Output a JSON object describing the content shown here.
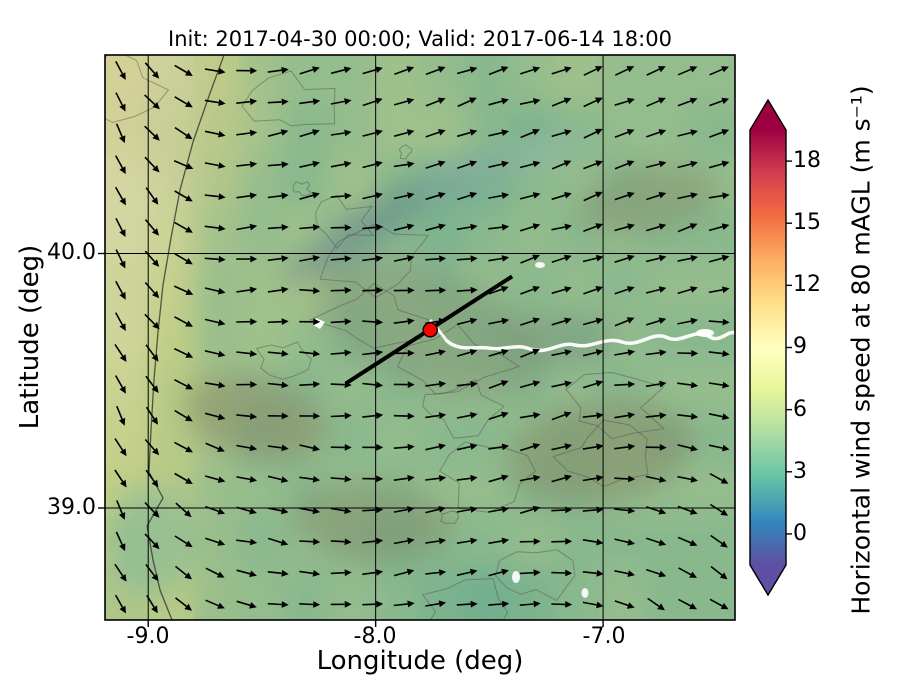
{
  "figure": {
    "title": "Init: 2017-04-30 00:00; Valid: 2017-06-14 18:00"
  },
  "chart_data": {
    "type": "heatmap",
    "title": "Init: 2017-04-30 00:00; Valid: 2017-06-14 18:00",
    "xlabel": "Longitude (deg)",
    "ylabel": "Latitude (deg)",
    "colorbar_label": "Horizontal wind speed at 80 mAGL (m s⁻¹)",
    "xlim": [
      -9.19,
      -6.42
    ],
    "ylim": [
      38.56,
      40.78
    ],
    "xticks": [
      -9.0,
      -8.0,
      -7.0
    ],
    "xtick_labels": [
      "-9.0",
      "-8.0",
      "-7.0"
    ],
    "yticks": [
      40.0,
      39.0
    ],
    "ytick_labels": [
      "40.0",
      "39.0"
    ],
    "grid": true,
    "colorbar": {
      "ticks": [
        0,
        3,
        6,
        9,
        12,
        15,
        18
      ],
      "tick_labels": [
        "0",
        "3",
        "6",
        "9",
        "12",
        "15",
        "18"
      ],
      "range": [
        -1.5,
        19.5
      ],
      "extend": "both",
      "colormap": {
        "name": "Spectral_r",
        "stops": [
          [
            0.0,
            "#5e4fa2"
          ],
          [
            0.1,
            "#3288bd"
          ],
          [
            0.2,
            "#66c2a5"
          ],
          [
            0.3,
            "#abdda4"
          ],
          [
            0.4,
            "#e6f598"
          ],
          [
            0.5,
            "#ffffbf"
          ],
          [
            0.6,
            "#fee08b"
          ],
          [
            0.7,
            "#fdae61"
          ],
          [
            0.8,
            "#f46d43"
          ],
          [
            0.9,
            "#d53e4f"
          ],
          [
            1.0,
            "#9e0142"
          ]
        ],
        "under": "#5e4fa2",
        "over": "#9e0142"
      }
    },
    "field": {
      "ncols": 14,
      "nrows": 11,
      "values": [
        [
          9.5,
          9.0,
          7.0,
          5.3,
          4.8,
          4.8,
          5.3,
          4.8,
          4.3,
          4.8,
          5.3,
          4.8,
          4.8,
          4.8
        ],
        [
          9.5,
          8.5,
          6.5,
          5.3,
          4.3,
          4.8,
          5.3,
          5.3,
          4.3,
          3.8,
          4.3,
          4.8,
          4.8,
          4.3
        ],
        [
          9.0,
          8.5,
          6.0,
          4.8,
          4.3,
          5.3,
          4.3,
          3.4,
          3.4,
          4.3,
          4.8,
          4.3,
          4.8,
          4.8
        ],
        [
          9.0,
          8.0,
          5.5,
          4.8,
          5.3,
          4.8,
          4.3,
          3.8,
          4.3,
          4.8,
          4.3,
          4.8,
          4.3,
          4.3
        ],
        [
          8.5,
          7.5,
          5.0,
          5.3,
          5.8,
          4.8,
          4.8,
          4.3,
          4.8,
          4.3,
          4.8,
          4.3,
          4.8,
          4.8
        ],
        [
          8.5,
          7.0,
          5.0,
          5.3,
          4.8,
          4.3,
          4.8,
          4.8,
          4.3,
          4.8,
          4.3,
          4.8,
          4.3,
          4.3
        ],
        [
          8.0,
          6.5,
          5.5,
          4.8,
          4.3,
          4.8,
          4.3,
          4.8,
          4.8,
          4.3,
          4.8,
          4.3,
          4.8,
          4.8
        ],
        [
          7.5,
          6.5,
          5.5,
          4.3,
          4.8,
          4.3,
          4.8,
          4.3,
          4.3,
          4.8,
          4.3,
          4.8,
          4.3,
          4.3
        ],
        [
          7.0,
          6.5,
          5.0,
          4.8,
          4.3,
          4.8,
          4.3,
          4.8,
          4.8,
          4.3,
          4.3,
          4.8,
          4.8,
          4.8
        ],
        [
          6.5,
          7.0,
          5.0,
          4.3,
          4.8,
          4.3,
          3.8,
          4.3,
          4.3,
          4.8,
          4.3,
          4.3,
          4.3,
          4.3
        ],
        [
          6.0,
          6.5,
          5.0,
          4.8,
          4.3,
          4.8,
          4.3,
          3.8,
          3.4,
          3.8,
          4.3,
          4.8,
          4.3,
          4.3
        ]
      ]
    },
    "quiver": {
      "cols": 20,
      "rows": 18,
      "color": "#000000"
    },
    "transect": {
      "from_lonlat": [
        -8.13,
        39.49
      ],
      "to_lonlat": [
        -7.4,
        39.91
      ],
      "color": "#000000"
    },
    "marker": {
      "lon": -7.76,
      "lat": 39.7,
      "color": "#ff0000"
    }
  }
}
